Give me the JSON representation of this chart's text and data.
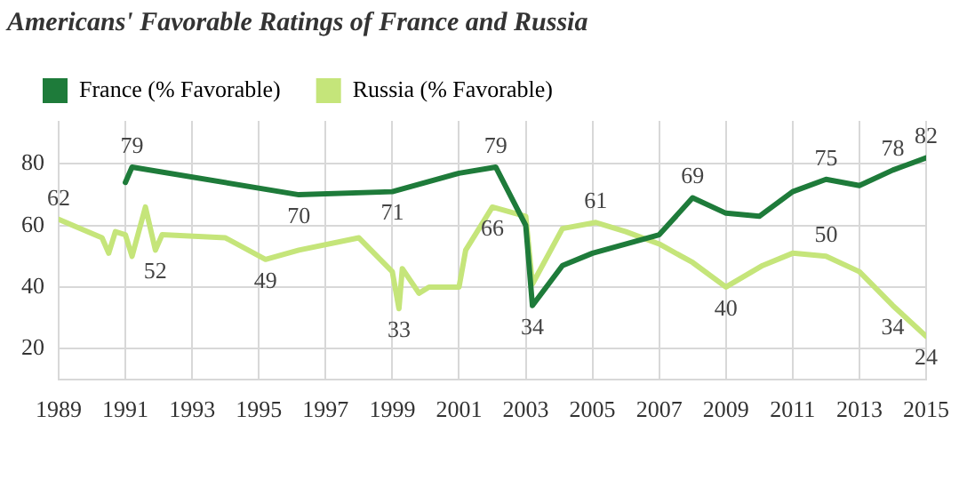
{
  "chart_data": {
    "type": "line",
    "title": "Americans' Favorable Ratings of France and Russia",
    "xlim": [
      1989,
      2015
    ],
    "xticks": [
      1989,
      1991,
      1993,
      1995,
      1997,
      1999,
      2001,
      2003,
      2005,
      2007,
      2009,
      2011,
      2013,
      2015
    ],
    "ylim": [
      10,
      94
    ],
    "yticks": [
      20,
      40,
      60,
      80
    ],
    "grid": true,
    "legend": "top left",
    "marker": "none",
    "line_style": "solid",
    "series": [
      {
        "name": "France (% Favorable)",
        "color": "#1e7b3a",
        "x": [
          1991.0,
          1991.2,
          1996.2,
          1999.0,
          2001.0,
          2002.1,
          2003.0,
          2003.2,
          2004.1,
          2005.0,
          2007.0,
          2008.0,
          2009.0,
          2010.0,
          2011.0,
          2012.0,
          2013.0,
          2014.0,
          2015.0
        ],
        "values": [
          74,
          79,
          70,
          71,
          77,
          79,
          60,
          34,
          47,
          51,
          57,
          69,
          64,
          63,
          71,
          75,
          73,
          78,
          82
        ],
        "value_labels": [
          null,
          "79",
          "70",
          "71",
          null,
          "79",
          null,
          "34",
          null,
          null,
          null,
          "69",
          null,
          null,
          null,
          "75",
          null,
          "78",
          "82"
        ]
      },
      {
        "name": "Russia (% Favorable)",
        "color": "#c5e57a",
        "x": [
          1989.0,
          1990.3,
          1990.5,
          1990.7,
          1991.0,
          1991.2,
          1991.6,
          1991.9,
          1992.1,
          1994.0,
          1995.2,
          1996.2,
          1998.0,
          1999.0,
          1999.2,
          1999.3,
          1999.8,
          2000.1,
          2001.0,
          2001.2,
          2002.0,
          2003.0,
          2003.2,
          2004.1,
          2005.1,
          2006.0,
          2007.0,
          2008.0,
          2009.0,
          2010.1,
          2011.0,
          2012.0,
          2013.0,
          2014.0,
          2015.0
        ],
        "values": [
          62,
          56,
          51,
          58,
          57,
          50,
          66,
          52,
          57,
          56,
          49,
          52,
          56,
          45,
          33,
          46,
          38,
          40,
          40,
          52,
          66,
          63,
          41,
          59,
          61,
          58,
          54,
          48,
          40,
          47,
          51,
          50,
          45,
          34,
          24
        ],
        "value_labels": [
          "62",
          null,
          null,
          null,
          null,
          null,
          null,
          "52",
          null,
          null,
          "49",
          null,
          null,
          null,
          "33",
          null,
          null,
          null,
          null,
          null,
          "66",
          null,
          null,
          null,
          "61",
          null,
          null,
          null,
          "40",
          null,
          null,
          "50",
          null,
          "34",
          "24"
        ]
      }
    ]
  }
}
